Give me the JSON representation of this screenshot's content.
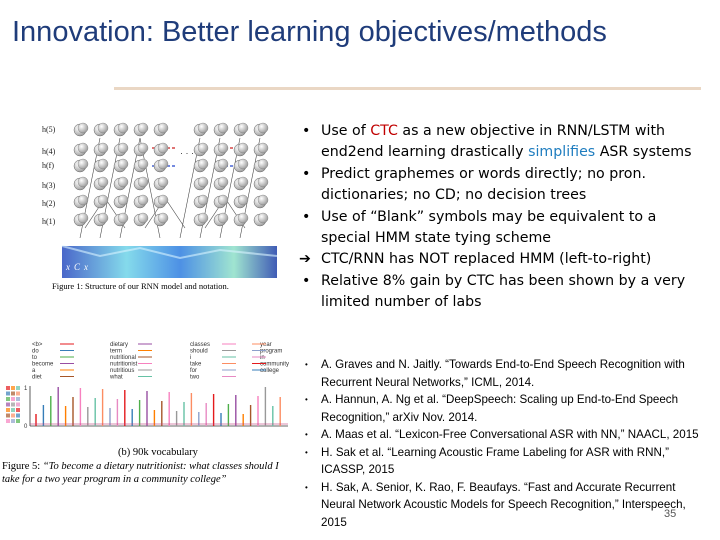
{
  "slide": {
    "title": "Innovation: Better learning objectives/methods",
    "page_number": "35"
  },
  "figure1": {
    "caption": "Figure 1: Structure of our RNN model and notation.",
    "layer_labels": [
      "h(5)",
      "h(4)",
      "h(f)",
      "h(3)",
      "h(2)",
      "h(1)"
    ],
    "input_labels": [
      "x",
      "C",
      "x"
    ]
  },
  "figure5": {
    "legend_left": [
      "<b>",
      "do",
      "to",
      "become",
      "a",
      "diet"
    ],
    "legend_mid": [
      "dietary",
      "term",
      "nutritional",
      "nutritionist",
      "nutritious",
      "what"
    ],
    "legend_right": [
      "classes",
      "should",
      "i",
      "take",
      "for",
      "two"
    ],
    "legend_far": [
      "year",
      "program",
      "in",
      "community",
      "college"
    ],
    "y_ticks": [
      "1",
      "",
      "",
      "",
      "0"
    ],
    "sublabel": "(b) 90k vocabulary",
    "caption_label": "Figure 5:",
    "caption_quote": "“To become a dietary nutritionist: what classes should I take for a two year program in a community college”"
  },
  "bullets": {
    "b1": {
      "pre": "Use of ",
      "hl1": "CTC",
      "mid": " as a new objective in RNN/LSTM with end2end learning drastically ",
      "hl2": "simplifies",
      "post": " ASR systems"
    },
    "b2": "Predict graphemes or words directly; no pron. dictionaries; no CD; no decision trees",
    "b3": "Use of “Blank” symbols may be equivalent to a special HMM state tying scheme",
    "b4": "CTC/RNN has NOT replaced HMM (left-to-right)",
    "b5": "Relative 8% gain by CTC has been shown by a very limited number of labs",
    "bullet_glyph": "•",
    "arrow_glyph": "➔"
  },
  "references": [
    "A. Graves and N. Jaitly. “Towards End-to-End Speech Recognition with Recurrent Neural Networks,” ICML, 2014.",
    "A. Hannun, A. Ng et al. “DeepSpeech: Scaling up End-to-End Speech Recognition,” arXiv Nov. 2014.",
    "A. Maas et al. “Lexicon-Free Conversational ASR with NN,” NAACL, 2015",
    "H. Sak et al. “Learning Acoustic Frame Labeling for ASR with RNN,” ICASSP, 2015",
    "H. Sak, A. Senior, K. Rao, F. Beaufays. “Fast and Accurate Recurrent Neural Network Acoustic Models for Speech Recognition,” Interspeech, 2015"
  ],
  "colors": {
    "title": "#1f3c7a",
    "highlight_red": "#c00000",
    "highlight_blue": "#1f7dbf",
    "title_rule": "#ead7c4"
  }
}
